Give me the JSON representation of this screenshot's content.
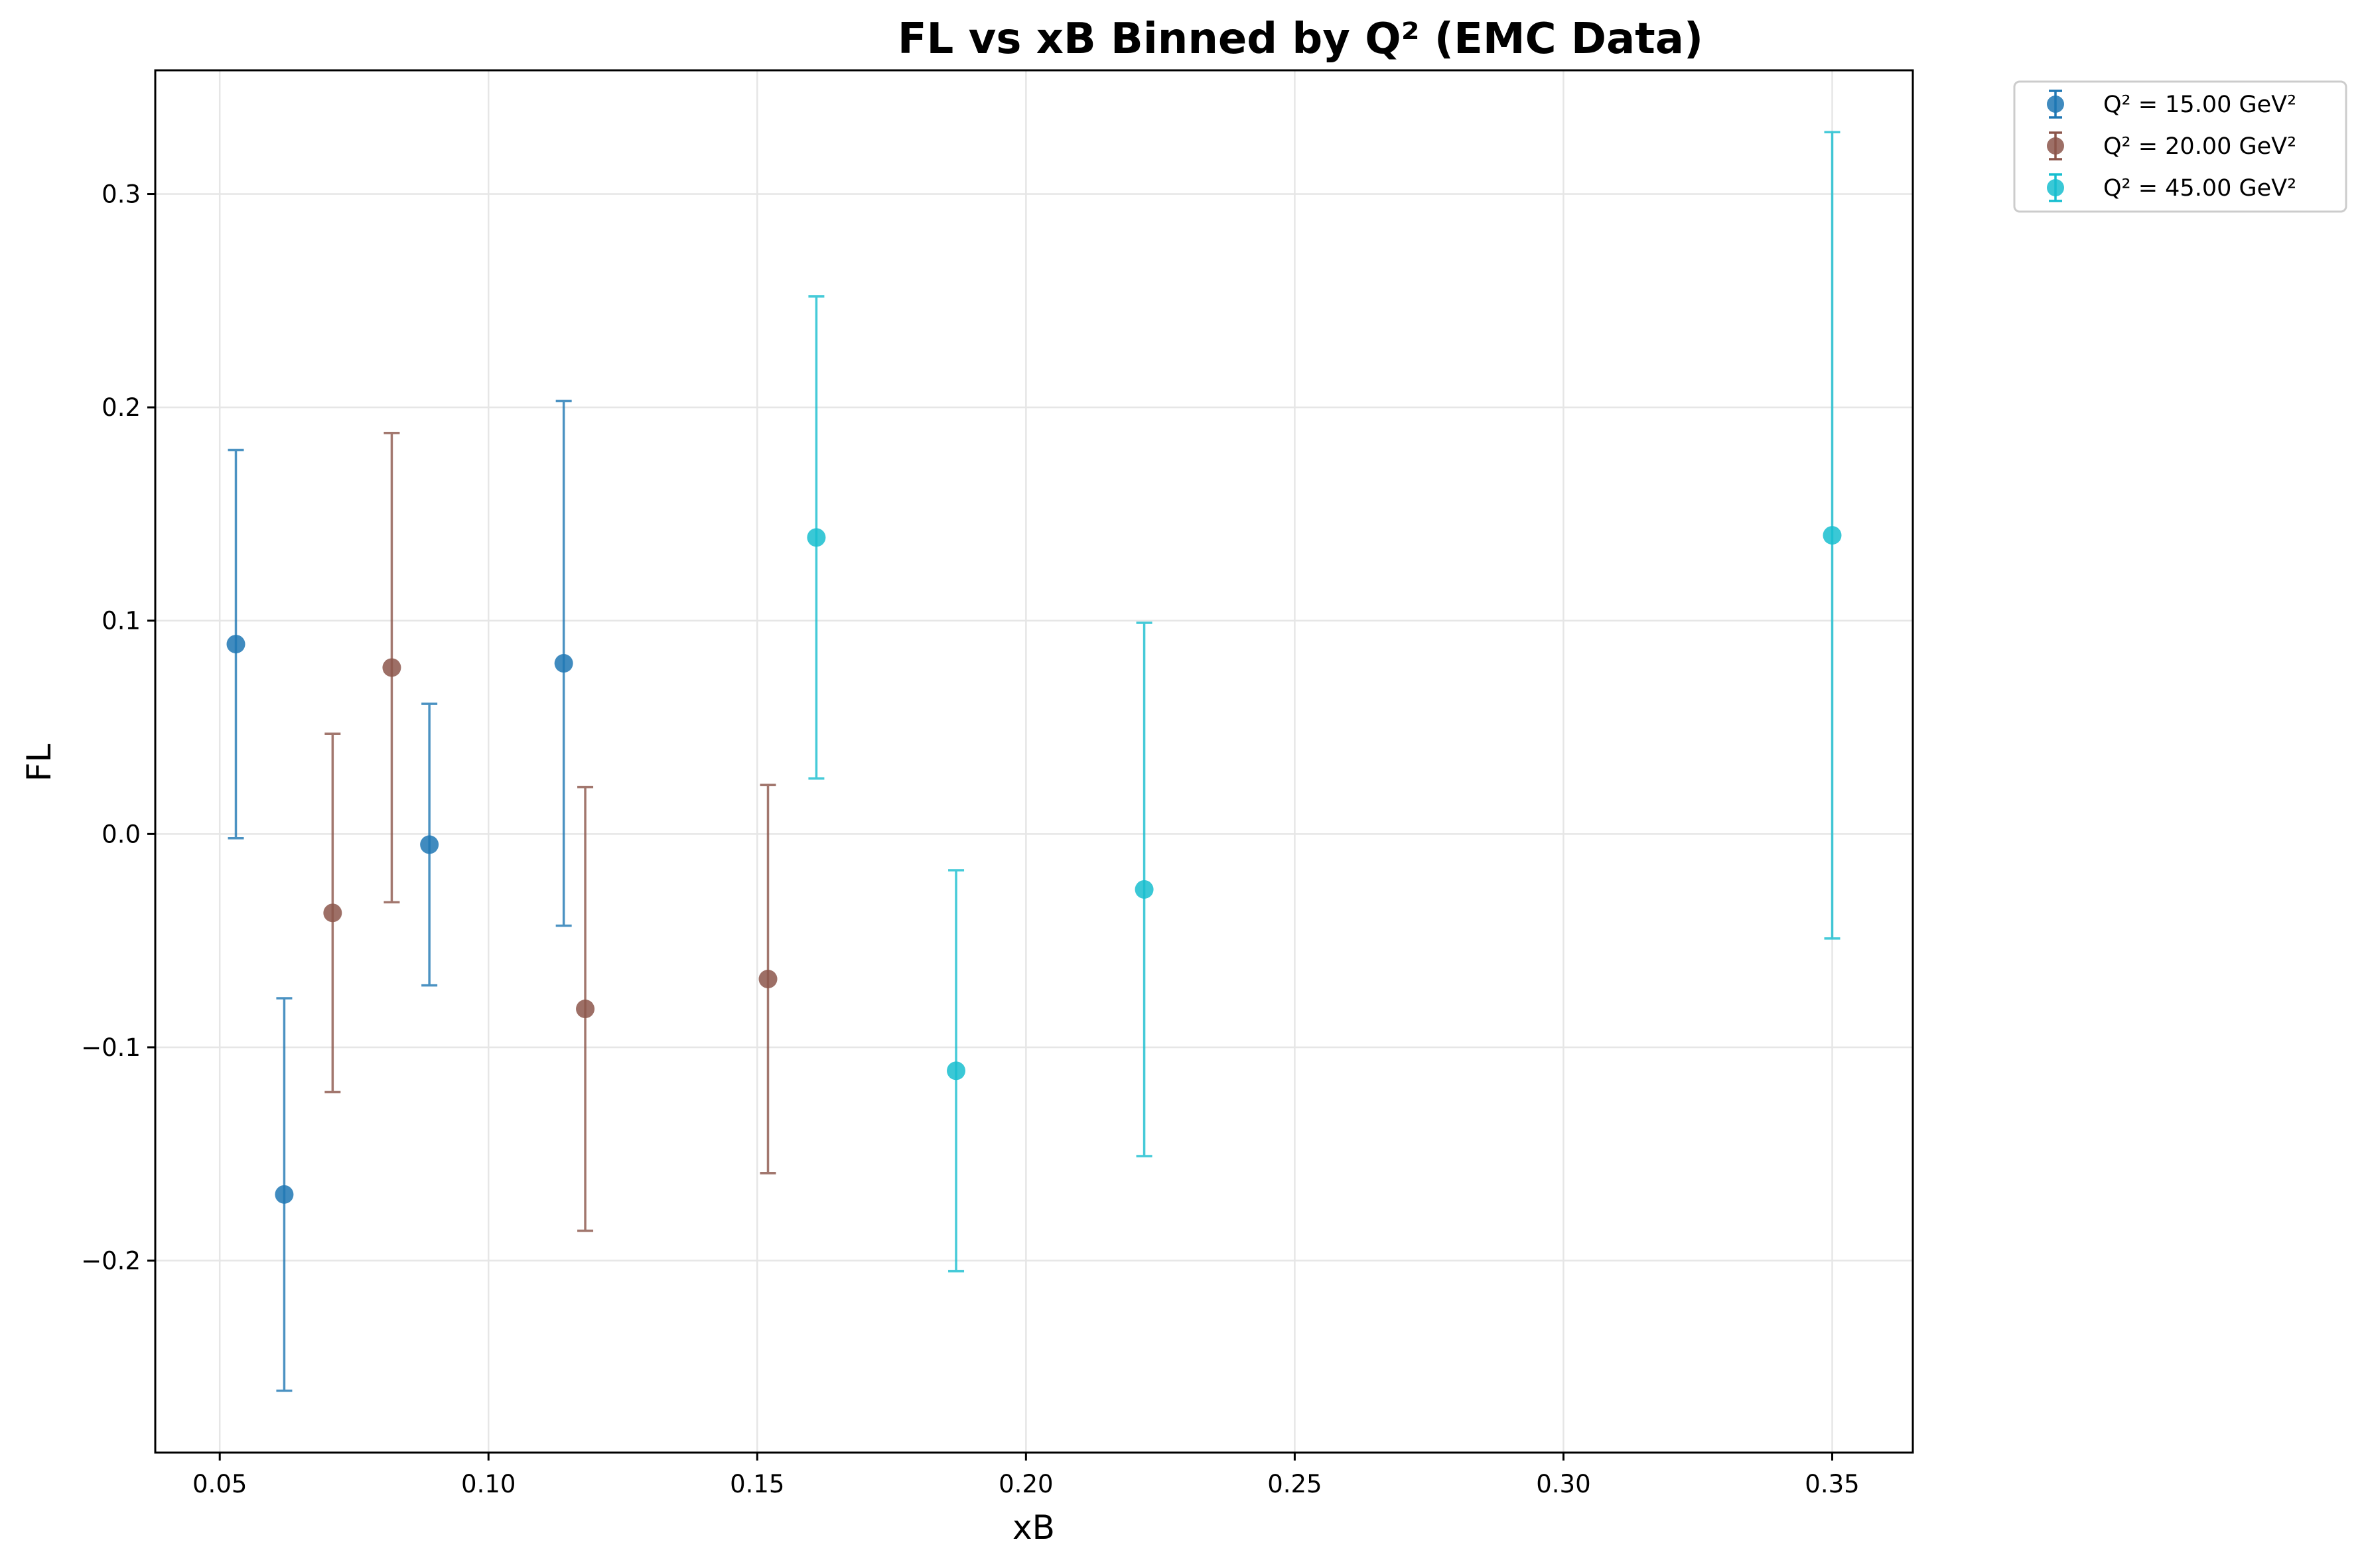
{
  "chart_data": {
    "type": "scatter",
    "title": "FL vs xB Binned by Q² (EMC Data)",
    "xlabel": "xB",
    "ylabel": "FL",
    "xlim": [
      0.038,
      0.365
    ],
    "ylim": [
      -0.29,
      0.358
    ],
    "xticks": [
      0.05,
      0.1,
      0.15,
      0.2,
      0.25,
      0.3,
      0.35
    ],
    "xtick_labels": [
      "0.05",
      "0.10",
      "0.15",
      "0.20",
      "0.25",
      "0.30",
      "0.35"
    ],
    "yticks": [
      -0.2,
      -0.1,
      0.0,
      0.1,
      0.2,
      0.3
    ],
    "ytick_labels": [
      "−0.2",
      "−0.1",
      "0.0",
      "0.1",
      "0.2",
      "0.3"
    ],
    "grid": true,
    "legend_position": "outside-top-right",
    "series": [
      {
        "name": "Q² = 15.00 GeV²",
        "color": "#1f77b4",
        "points": [
          {
            "x": 0.053,
            "y": 0.089,
            "err": 0.091
          },
          {
            "x": 0.062,
            "y": -0.169,
            "err": 0.092
          },
          {
            "x": 0.089,
            "y": -0.005,
            "err": 0.066
          },
          {
            "x": 0.114,
            "y": 0.08,
            "err": 0.123
          }
        ]
      },
      {
        "name": "Q² = 20.00 GeV²",
        "color": "#8c564b",
        "points": [
          {
            "x": 0.071,
            "y": -0.037,
            "err": 0.084
          },
          {
            "x": 0.082,
            "y": 0.078,
            "err": 0.11
          },
          {
            "x": 0.118,
            "y": -0.082,
            "err": 0.104
          },
          {
            "x": 0.152,
            "y": -0.068,
            "err": 0.091
          }
        ]
      },
      {
        "name": "Q² = 45.00 GeV²",
        "color": "#17becf",
        "points": [
          {
            "x": 0.161,
            "y": 0.139,
            "err": 0.113
          },
          {
            "x": 0.187,
            "y": -0.111,
            "err": 0.094
          },
          {
            "x": 0.222,
            "y": -0.026,
            "err": 0.125
          },
          {
            "x": 0.35,
            "y": 0.14,
            "err": 0.189
          }
        ]
      }
    ]
  }
}
